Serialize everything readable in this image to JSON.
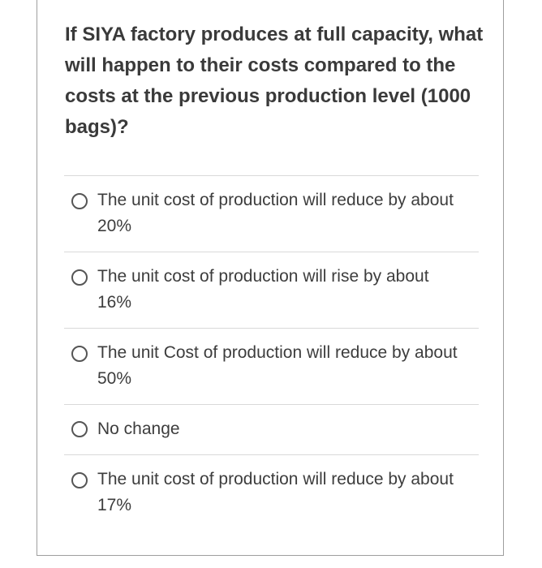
{
  "question": {
    "text": "If SIYA factory produces at full capacity, what will happen to their costs compared to the costs at the previous production level (1000 bags)?"
  },
  "options": [
    {
      "label": "The unit cost of production will reduce by about 20%"
    },
    {
      "label": "The unit cost of production will rise by about 16%"
    },
    {
      "label": "The unit Cost of production will reduce by about 50%"
    },
    {
      "label": "No change"
    },
    {
      "label": "The unit cost of production will reduce by about 17%"
    }
  ]
}
